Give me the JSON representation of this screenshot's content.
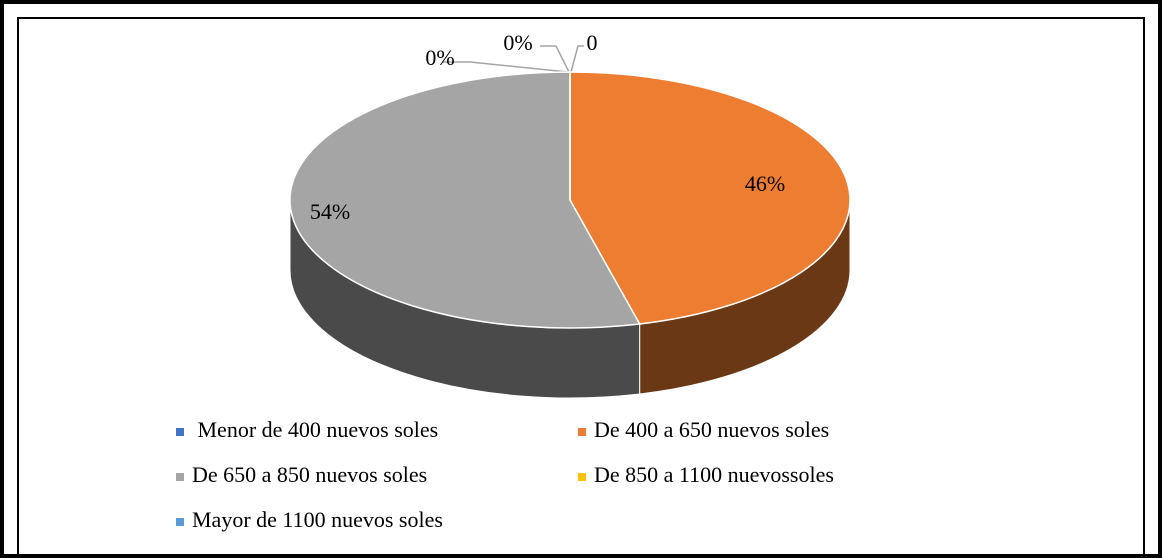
{
  "chart_data": {
    "type": "pie",
    "categories": [
      " Menor de 400 nuevos soles",
      "De 400 a 650 nuevos soles",
      "De 650 a 850 nuevos soles",
      "De 850 a 1100 nuevossoles",
      "Mayor de 1100 nuevos soles"
    ],
    "values": [
      0,
      46,
      54,
      0,
      0
    ],
    "value_labels": [
      "0%",
      "46%",
      "54%",
      "0%",
      "0"
    ],
    "colors": [
      "#4472c4",
      "#ed7d31",
      "#a5a5a5",
      "#ffc000",
      "#5b9bd5"
    ],
    "legend": "bottom"
  }
}
